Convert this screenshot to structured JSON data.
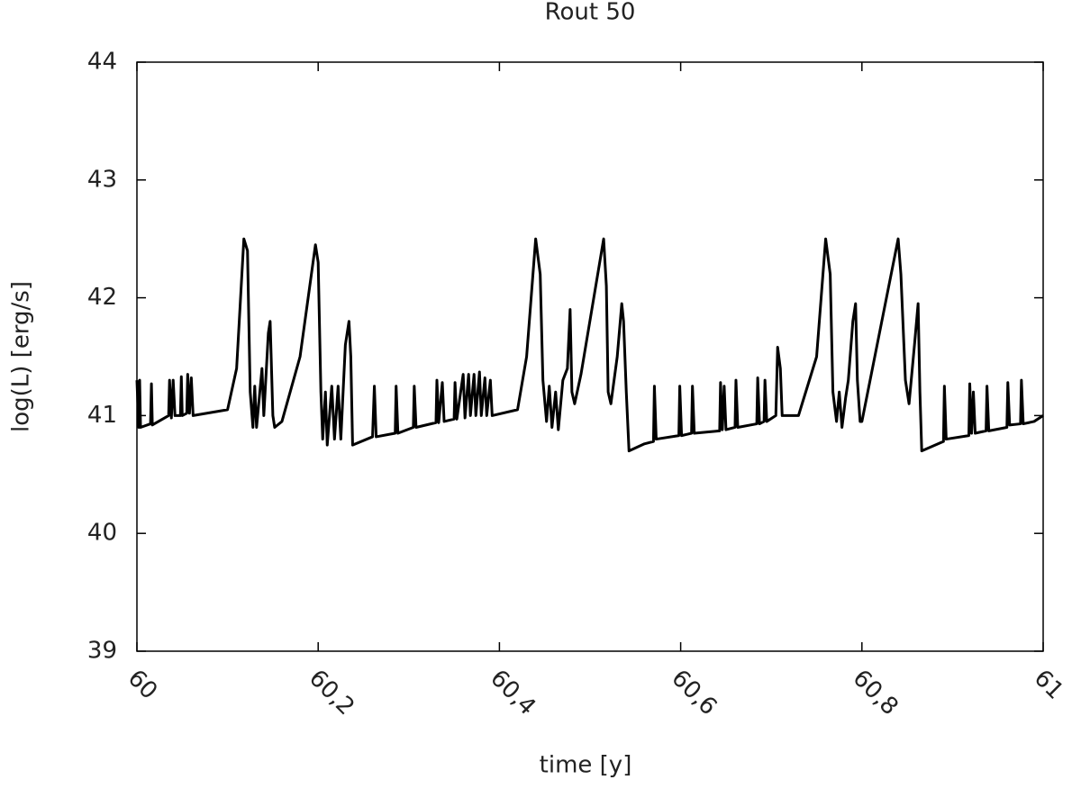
{
  "chart_data": {
    "type": "line",
    "title": "Rout 50",
    "x_label": "time [y]",
    "y_label": "log(L) [erg/s]",
    "color": "#000000",
    "xlim": [
      60,
      61
    ],
    "ylim": [
      39,
      44
    ],
    "xticks": [
      60,
      {
        "value": 60.2,
        "label": "60,2"
      },
      {
        "value": 60.4,
        "label": "60,4"
      },
      {
        "value": 60.6,
        "label": "60,6"
      },
      {
        "value": 60.8,
        "label": "60,8"
      },
      61
    ],
    "yticks": [
      39,
      40,
      41,
      42,
      43,
      44
    ],
    "x": [
      60.0,
      60.002,
      60.003,
      60.004,
      60.015,
      60.016,
      60.017,
      60.035,
      60.036,
      60.038,
      60.04,
      60.042,
      60.048,
      60.049,
      60.05,
      60.055,
      60.056,
      60.058,
      60.06,
      60.062,
      60.1,
      60.11,
      60.118,
      60.122,
      60.125,
      60.128,
      60.13,
      60.132,
      60.138,
      60.14,
      60.145,
      60.147,
      60.15,
      60.152,
      60.16,
      60.18,
      60.197,
      60.2,
      60.203,
      60.205,
      60.208,
      60.21,
      60.215,
      60.218,
      60.222,
      60.225,
      60.23,
      60.234,
      60.236,
      60.238,
      60.26,
      60.262,
      60.264,
      60.285,
      60.286,
      60.288,
      60.305,
      60.306,
      60.308,
      60.33,
      60.331,
      60.333,
      60.337,
      60.339,
      60.35,
      60.351,
      60.353,
      60.36,
      60.362,
      60.366,
      60.368,
      60.372,
      60.374,
      60.378,
      60.38,
      60.384,
      60.386,
      60.39,
      60.392,
      60.42,
      60.43,
      60.44,
      60.445,
      60.448,
      60.452,
      60.455,
      60.458,
      60.462,
      60.465,
      60.47,
      60.475,
      60.478,
      60.48,
      60.483,
      60.49,
      60.515,
      60.518,
      60.52,
      60.523,
      60.53,
      60.535,
      60.537,
      60.54,
      60.543,
      60.56,
      60.57,
      60.571,
      60.573,
      60.598,
      60.599,
      60.601,
      60.612,
      60.613,
      60.615,
      60.643,
      60.644,
      60.646,
      60.648,
      60.65,
      60.66,
      60.661,
      60.663,
      60.684,
      60.685,
      60.687,
      60.692,
      60.693,
      60.695,
      60.705,
      60.707,
      60.71,
      60.712,
      60.73,
      60.75,
      60.76,
      60.765,
      60.768,
      60.772,
      60.775,
      60.778,
      60.782,
      60.785,
      60.79,
      60.793,
      60.795,
      60.798,
      60.8,
      60.84,
      60.843,
      60.848,
      60.852,
      60.858,
      60.862,
      60.864,
      60.866,
      60.89,
      60.891,
      60.893,
      60.918,
      60.919,
      60.921,
      60.923,
      60.925,
      60.937,
      60.938,
      60.94,
      60.96,
      60.961,
      60.963,
      60.975,
      60.976,
      60.978,
      60.99,
      61.0
    ],
    "values": [
      41.3,
      40.9,
      41.3,
      40.9,
      40.93,
      41.27,
      40.92,
      41.0,
      41.3,
      40.98,
      41.3,
      41.0,
      41.0,
      41.33,
      41.0,
      41.02,
      41.35,
      41.02,
      41.32,
      41.0,
      41.05,
      41.4,
      42.5,
      42.4,
      41.2,
      40.9,
      41.25,
      40.9,
      41.4,
      41.0,
      41.7,
      41.8,
      41.0,
      40.9,
      40.95,
      41.5,
      42.45,
      42.3,
      41.2,
      40.8,
      41.2,
      40.75,
      41.25,
      40.8,
      41.25,
      40.8,
      41.6,
      41.8,
      41.5,
      40.75,
      40.82,
      41.25,
      40.82,
      40.85,
      41.25,
      40.85,
      40.9,
      41.25,
      40.9,
      40.94,
      41.3,
      40.94,
      41.28,
      40.95,
      40.97,
      41.28,
      40.97,
      41.35,
      40.98,
      41.35,
      41.0,
      41.35,
      41.0,
      41.37,
      41.0,
      41.32,
      41.0,
      41.3,
      41.0,
      41.05,
      41.5,
      42.5,
      42.2,
      41.3,
      40.95,
      41.25,
      40.9,
      41.2,
      40.88,
      41.3,
      41.4,
      41.9,
      41.2,
      41.1,
      41.35,
      42.5,
      42.1,
      41.2,
      41.1,
      41.5,
      41.95,
      41.8,
      41.2,
      40.7,
      40.76,
      40.78,
      41.25,
      40.8,
      40.83,
      41.25,
      40.83,
      40.85,
      41.25,
      40.85,
      40.87,
      41.28,
      40.88,
      41.25,
      40.88,
      40.9,
      41.3,
      40.9,
      40.93,
      41.32,
      40.93,
      40.95,
      41.3,
      40.95,
      41.0,
      41.58,
      41.4,
      41.0,
      41.0,
      41.5,
      42.5,
      42.2,
      41.2,
      40.95,
      41.2,
      40.9,
      41.15,
      41.3,
      41.8,
      41.95,
      41.3,
      40.95,
      40.95,
      42.5,
      42.2,
      41.3,
      41.1,
      41.6,
      41.95,
      41.2,
      40.7,
      40.78,
      41.25,
      40.8,
      40.83,
      41.27,
      40.85,
      41.2,
      40.85,
      40.87,
      41.25,
      40.87,
      40.9,
      41.28,
      40.92,
      40.93,
      41.3,
      40.93,
      40.95,
      41.0
    ]
  }
}
